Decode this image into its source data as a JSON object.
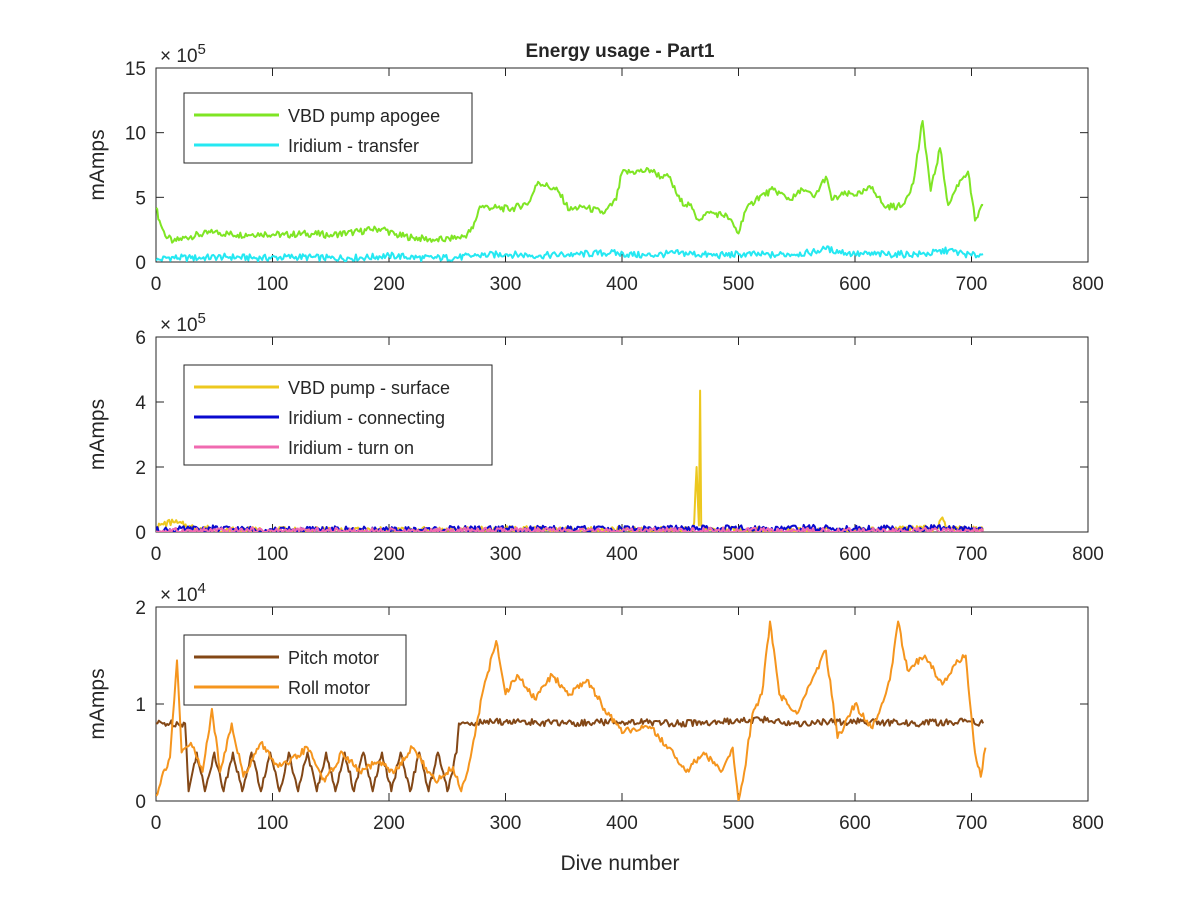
{
  "chart_data": [
    {
      "type": "line",
      "title": "Energy usage - Part1",
      "xlabel": "",
      "ylabel": "mAmps",
      "xlim": [
        0,
        800
      ],
      "ylim": [
        0,
        15
      ],
      "y_exponent": "× 10^5",
      "y_exponent_base": "× 10",
      "y_exponent_power": "5",
      "xticks": [
        "0",
        "100",
        "200",
        "300",
        "400",
        "500",
        "600",
        "700",
        "800"
      ],
      "yticks": [
        "0",
        "5",
        "10",
        "15"
      ],
      "legend_position": "top-left",
      "series": [
        {
          "name": "VBD pump apogee",
          "color": "#7fe524",
          "points": [
            [
              0,
              4.2
            ],
            [
              3,
              3.2
            ],
            [
              8,
              2
            ],
            [
              15,
              1.6
            ],
            [
              30,
              2.0
            ],
            [
              50,
              2.3
            ],
            [
              70,
              2.1
            ],
            [
              90,
              2.2
            ],
            [
              110,
              2.1
            ],
            [
              130,
              2.2
            ],
            [
              150,
              2.1
            ],
            [
              170,
              2.3
            ],
            [
              185,
              2.5
            ],
            [
              195,
              2.6
            ],
            [
              205,
              2.1
            ],
            [
              220,
              1.9
            ],
            [
              240,
              1.7
            ],
            [
              255,
              1.8
            ],
            [
              265,
              2.0
            ],
            [
              272,
              2.6
            ],
            [
              278,
              4.3
            ],
            [
              290,
              4.2
            ],
            [
              305,
              4.1
            ],
            [
              320,
              4.6
            ],
            [
              328,
              6.2
            ],
            [
              345,
              5.5
            ],
            [
              355,
              4.0
            ],
            [
              365,
              4.3
            ],
            [
              385,
              3.8
            ],
            [
              395,
              4.8
            ],
            [
              400,
              6.9
            ],
            [
              415,
              7.0
            ],
            [
              425,
              7.1
            ],
            [
              435,
              6.5
            ],
            [
              440,
              6.6
            ],
            [
              450,
              4.7
            ],
            [
              458,
              4.4
            ],
            [
              465,
              3.3
            ],
            [
              475,
              3.8
            ],
            [
              490,
              3.6
            ],
            [
              500,
              2.2
            ],
            [
              505,
              3.8
            ],
            [
              515,
              4.9
            ],
            [
              530,
              5.6
            ],
            [
              545,
              4.8
            ],
            [
              555,
              5.6
            ],
            [
              565,
              5.0
            ],
            [
              575,
              6.6
            ],
            [
              580,
              4.8
            ],
            [
              590,
              5.2
            ],
            [
              605,
              5.3
            ],
            [
              615,
              5.8
            ],
            [
              625,
              4.3
            ],
            [
              640,
              4.3
            ],
            [
              650,
              6.1
            ],
            [
              658,
              10.9
            ],
            [
              665,
              5.5
            ],
            [
              673,
              8.8
            ],
            [
              680,
              4.4
            ],
            [
              690,
              6.3
            ],
            [
              697,
              7.0
            ],
            [
              703,
              3.2
            ],
            [
              710,
              4.4
            ]
          ]
        },
        {
          "name": "Iridium - transfer",
          "color": "#25e8f2",
          "points": [
            [
              0,
              0.1
            ],
            [
              10,
              0.35
            ],
            [
              30,
              0.3
            ],
            [
              60,
              0.4
            ],
            [
              90,
              0.3
            ],
            [
              120,
              0.4
            ],
            [
              150,
              0.3
            ],
            [
              180,
              0.35
            ],
            [
              200,
              0.5
            ],
            [
              230,
              0.3
            ],
            [
              260,
              0.35
            ],
            [
              275,
              0.5
            ],
            [
              300,
              0.6
            ],
            [
              330,
              0.5
            ],
            [
              360,
              0.6
            ],
            [
              390,
              0.7
            ],
            [
              420,
              0.5
            ],
            [
              450,
              0.7
            ],
            [
              480,
              0.5
            ],
            [
              500,
              0.6
            ],
            [
              530,
              0.55
            ],
            [
              560,
              0.7
            ],
            [
              575,
              1.0
            ],
            [
              600,
              0.6
            ],
            [
              630,
              0.6
            ],
            [
              660,
              0.6
            ],
            [
              680,
              0.9
            ],
            [
              700,
              0.5
            ],
            [
              710,
              0.6
            ]
          ]
        }
      ]
    },
    {
      "type": "line",
      "title": "",
      "xlabel": "",
      "ylabel": "mAmps",
      "xlim": [
        0,
        800
      ],
      "ylim": [
        0,
        6
      ],
      "y_exponent": "× 10^5",
      "y_exponent_base": "× 10",
      "y_exponent_power": "5",
      "xticks": [
        "0",
        "100",
        "200",
        "300",
        "400",
        "500",
        "600",
        "700",
        "800"
      ],
      "yticks": [
        "0",
        "2",
        "4",
        "6"
      ],
      "legend_position": "top-left",
      "series": [
        {
          "name": "VBD pump - surface",
          "color": "#edc81f",
          "points": [
            [
              0,
              0.1
            ],
            [
              5,
              0.25
            ],
            [
              15,
              0.3
            ],
            [
              30,
              0.15
            ],
            [
              60,
              0.05
            ],
            [
              100,
              0.05
            ],
            [
              200,
              0.05
            ],
            [
              300,
              0.08
            ],
            [
              400,
              0.05
            ],
            [
              460,
              0.05
            ],
            [
              462,
              0.3
            ],
            [
              464,
              2.0
            ],
            [
              466,
              0.2
            ],
            [
              467,
              4.35
            ],
            [
              468,
              0.2
            ],
            [
              470,
              0.1
            ],
            [
              500,
              0.05
            ],
            [
              600,
              0.05
            ],
            [
              670,
              0.1
            ],
            [
              675,
              0.45
            ],
            [
              678,
              0.1
            ],
            [
              710,
              0.05
            ]
          ]
        },
        {
          "name": "Iridium - connecting",
          "color": "#0a0acf",
          "points": [
            [
              0,
              0.05
            ],
            [
              50,
              0.1
            ],
            [
              100,
              0.05
            ],
            [
              150,
              0.08
            ],
            [
              200,
              0.05
            ],
            [
              250,
              0.08
            ],
            [
              300,
              0.1
            ],
            [
              350,
              0.08
            ],
            [
              400,
              0.1
            ],
            [
              450,
              0.1
            ],
            [
              500,
              0.1
            ],
            [
              550,
              0.12
            ],
            [
              600,
              0.1
            ],
            [
              650,
              0.1
            ],
            [
              700,
              0.12
            ],
            [
              710,
              0.1
            ]
          ]
        },
        {
          "name": "Iridium - turn on",
          "color": "#f06ab0",
          "points": [
            [
              0,
              0.02
            ],
            [
              100,
              0.03
            ],
            [
              200,
              0.02
            ],
            [
              300,
              0.03
            ],
            [
              400,
              0.02
            ],
            [
              500,
              0.03
            ],
            [
              600,
              0.02
            ],
            [
              700,
              0.03
            ],
            [
              710,
              0.02
            ]
          ]
        }
      ]
    },
    {
      "type": "line",
      "title": "",
      "xlabel": "Dive number",
      "ylabel": "mAmps",
      "xlim": [
        0,
        800
      ],
      "ylim": [
        0,
        2
      ],
      "y_exponent": "× 10^4",
      "y_exponent_base": "× 10",
      "y_exponent_power": "4",
      "xticks": [
        "0",
        "100",
        "200",
        "300",
        "400",
        "500",
        "600",
        "700",
        "800"
      ],
      "yticks": [
        "0",
        "1",
        "2"
      ],
      "legend_position": "top-left",
      "series": [
        {
          "name": "Pitch motor",
          "color": "#834716",
          "points": [
            [
              0,
              0.8
            ],
            [
              25,
              0.8
            ],
            [
              28,
              0.1
            ],
            [
              35,
              0.5
            ],
            [
              42,
              0.1
            ],
            [
              50,
              0.5
            ],
            [
              58,
              0.1
            ],
            [
              66,
              0.5
            ],
            [
              74,
              0.1
            ],
            [
              82,
              0.5
            ],
            [
              90,
              0.1
            ],
            [
              98,
              0.5
            ],
            [
              106,
              0.1
            ],
            [
              114,
              0.5
            ],
            [
              122,
              0.1
            ],
            [
              130,
              0.5
            ],
            [
              138,
              0.1
            ],
            [
              146,
              0.5
            ],
            [
              154,
              0.1
            ],
            [
              162,
              0.5
            ],
            [
              170,
              0.1
            ],
            [
              178,
              0.5
            ],
            [
              186,
              0.1
            ],
            [
              194,
              0.5
            ],
            [
              202,
              0.1
            ],
            [
              210,
              0.5
            ],
            [
              218,
              0.1
            ],
            [
              226,
              0.5
            ],
            [
              234,
              0.1
            ],
            [
              242,
              0.5
            ],
            [
              250,
              0.1
            ],
            [
              258,
              0.5
            ],
            [
              260,
              0.8
            ],
            [
              300,
              0.82
            ],
            [
              350,
              0.8
            ],
            [
              400,
              0.82
            ],
            [
              450,
              0.8
            ],
            [
              500,
              0.82
            ],
            [
              520,
              0.84
            ],
            [
              550,
              0.8
            ],
            [
              600,
              0.82
            ],
            [
              650,
              0.8
            ],
            [
              700,
              0.82
            ],
            [
              710,
              0.8
            ]
          ]
        },
        {
          "name": "Roll motor",
          "color": "#f5951e",
          "points": [
            [
              0,
              0.05
            ],
            [
              5,
              0.25
            ],
            [
              12,
              0.45
            ],
            [
              18,
              1.45
            ],
            [
              22,
              0.5
            ],
            [
              30,
              0.6
            ],
            [
              40,
              0.3
            ],
            [
              48,
              0.95
            ],
            [
              55,
              0.3
            ],
            [
              65,
              0.8
            ],
            [
              75,
              0.25
            ],
            [
              90,
              0.6
            ],
            [
              105,
              0.35
            ],
            [
              115,
              0.4
            ],
            [
              130,
              0.55
            ],
            [
              145,
              0.2
            ],
            [
              160,
              0.5
            ],
            [
              175,
              0.3
            ],
            [
              190,
              0.4
            ],
            [
              205,
              0.3
            ],
            [
              220,
              0.55
            ],
            [
              240,
              0.2
            ],
            [
              255,
              0.35
            ],
            [
              262,
              0.1
            ],
            [
              270,
              0.45
            ],
            [
              280,
              1.1
            ],
            [
              292,
              1.65
            ],
            [
              300,
              1.1
            ],
            [
              310,
              1.3
            ],
            [
              325,
              1.05
            ],
            [
              340,
              1.3
            ],
            [
              355,
              1.1
            ],
            [
              370,
              1.25
            ],
            [
              385,
              0.95
            ],
            [
              400,
              0.7
            ],
            [
              410,
              0.75
            ],
            [
              425,
              0.75
            ],
            [
              440,
              0.55
            ],
            [
              455,
              0.3
            ],
            [
              470,
              0.5
            ],
            [
              485,
              0.3
            ],
            [
              495,
              0.55
            ],
            [
              500,
              0.0
            ],
            [
              505,
              0.3
            ],
            [
              512,
              0.9
            ],
            [
              520,
              1.1
            ],
            [
              527,
              1.85
            ],
            [
              535,
              1.1
            ],
            [
              550,
              0.9
            ],
            [
              565,
              1.3
            ],
            [
              575,
              1.55
            ],
            [
              585,
              0.65
            ],
            [
              600,
              1.0
            ],
            [
              615,
              0.75
            ],
            [
              630,
              1.25
            ],
            [
              637,
              1.85
            ],
            [
              645,
              1.35
            ],
            [
              660,
              1.5
            ],
            [
              675,
              1.2
            ],
            [
              685,
              1.4
            ],
            [
              695,
              1.5
            ],
            [
              703,
              0.5
            ],
            [
              708,
              0.25
            ],
            [
              712,
              0.55
            ]
          ]
        }
      ]
    }
  ]
}
